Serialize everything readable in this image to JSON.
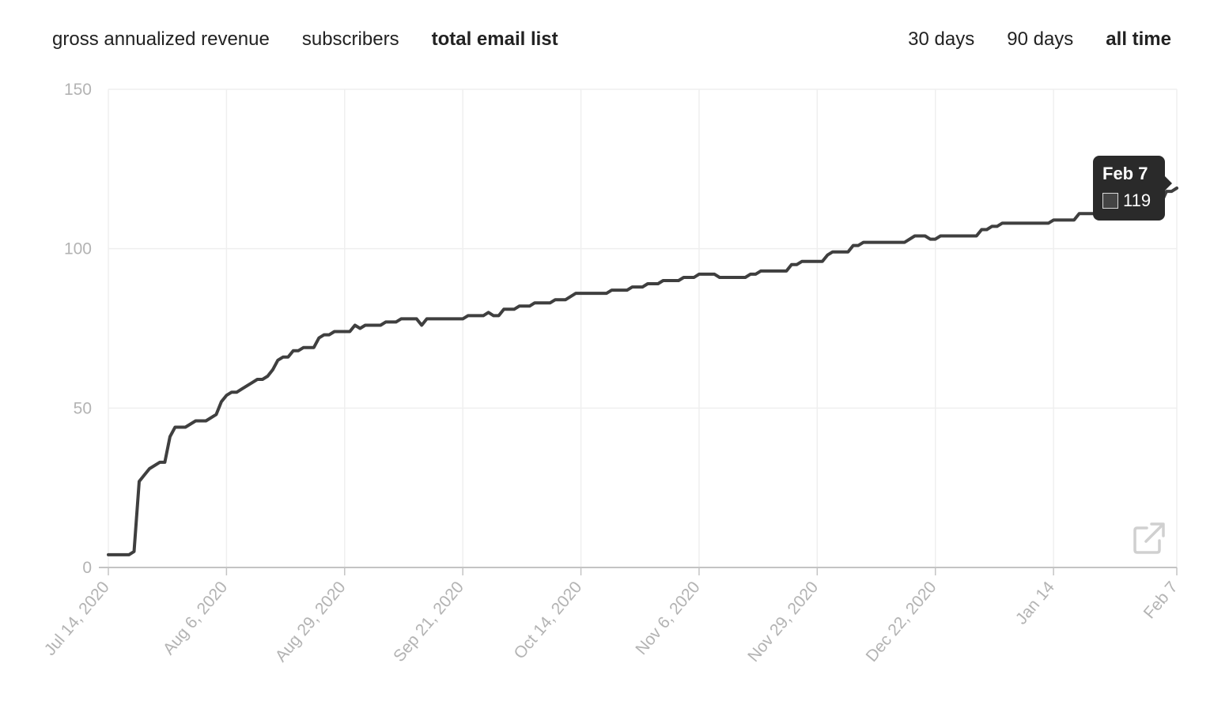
{
  "tabs": [
    {
      "label": "gross annualized revenue",
      "active": false
    },
    {
      "label": "subscribers",
      "active": false
    },
    {
      "label": "total email list",
      "active": true
    }
  ],
  "ranges": [
    {
      "label": "30 days",
      "active": false
    },
    {
      "label": "90 days",
      "active": false
    },
    {
      "label": "all time",
      "active": true
    }
  ],
  "tooltip": {
    "date": "Feb 7",
    "value": "119"
  },
  "icons": {
    "external": "external-link-icon"
  },
  "colors": {
    "line": "#3f3f3f",
    "tooltip_bg": "#2a2a2a",
    "grid": "#efefef",
    "tick_text": "#b3b3b3"
  },
  "chart_data": {
    "type": "line",
    "title": "",
    "xlabel": "",
    "ylabel": "",
    "ylim": [
      0,
      150
    ],
    "yticks": [
      0,
      50,
      100,
      150
    ],
    "grid": true,
    "legend": "none",
    "x_range": [
      "2020-07-14",
      "2021-02-07"
    ],
    "x_ticks": [
      {
        "date": "2020-07-14",
        "label": "Jul 14, 2020"
      },
      {
        "date": "2020-08-06",
        "label": "Aug 6, 2020"
      },
      {
        "date": "2020-08-29",
        "label": "Aug 29, 2020"
      },
      {
        "date": "2020-09-21",
        "label": "Sep 21, 2020"
      },
      {
        "date": "2020-10-14",
        "label": "Oct 14, 2020"
      },
      {
        "date": "2020-11-06",
        "label": "Nov 6, 2020"
      },
      {
        "date": "2020-11-29",
        "label": "Nov 29, 2020"
      },
      {
        "date": "2020-12-22",
        "label": "Dec 22, 2020"
      },
      {
        "date": "2021-01-14",
        "label": "Jan 14"
      },
      {
        "date": "2021-02-07",
        "label": "Feb 7"
      }
    ],
    "series": [
      {
        "points": [
          [
            "2020-07-14",
            4
          ],
          [
            "2020-07-18",
            4
          ],
          [
            "2020-07-19",
            5
          ],
          [
            "2020-07-20",
            27
          ],
          [
            "2020-07-21",
            29
          ],
          [
            "2020-07-22",
            31
          ],
          [
            "2020-07-24",
            33
          ],
          [
            "2020-07-25",
            33
          ],
          [
            "2020-07-26",
            41
          ],
          [
            "2020-07-27",
            44
          ],
          [
            "2020-07-29",
            44
          ],
          [
            "2020-07-31",
            46
          ],
          [
            "2020-08-02",
            46
          ],
          [
            "2020-08-04",
            48
          ],
          [
            "2020-08-05",
            52
          ],
          [
            "2020-08-06",
            54
          ],
          [
            "2020-08-07",
            55
          ],
          [
            "2020-08-08",
            55
          ],
          [
            "2020-08-09",
            56
          ],
          [
            "2020-08-11",
            58
          ],
          [
            "2020-08-12",
            59
          ],
          [
            "2020-08-13",
            59
          ],
          [
            "2020-08-14",
            60
          ],
          [
            "2020-08-15",
            62
          ],
          [
            "2020-08-16",
            65
          ],
          [
            "2020-08-17",
            66
          ],
          [
            "2020-08-18",
            66
          ],
          [
            "2020-08-19",
            68
          ],
          [
            "2020-08-20",
            68
          ],
          [
            "2020-08-21",
            69
          ],
          [
            "2020-08-23",
            69
          ],
          [
            "2020-08-24",
            72
          ],
          [
            "2020-08-25",
            73
          ],
          [
            "2020-08-26",
            73
          ],
          [
            "2020-08-27",
            74
          ],
          [
            "2020-08-30",
            74
          ],
          [
            "2020-08-31",
            76
          ],
          [
            "2020-09-01",
            75
          ],
          [
            "2020-09-02",
            76
          ],
          [
            "2020-09-05",
            76
          ],
          [
            "2020-09-06",
            77
          ],
          [
            "2020-09-08",
            77
          ],
          [
            "2020-09-09",
            78
          ],
          [
            "2020-09-12",
            78
          ],
          [
            "2020-09-13",
            76
          ],
          [
            "2020-09-14",
            78
          ],
          [
            "2020-09-21",
            78
          ],
          [
            "2020-09-22",
            79
          ],
          [
            "2020-09-25",
            79
          ],
          [
            "2020-09-26",
            80
          ],
          [
            "2020-09-27",
            79
          ],
          [
            "2020-09-28",
            79
          ],
          [
            "2020-09-29",
            81
          ],
          [
            "2020-10-01",
            81
          ],
          [
            "2020-10-02",
            82
          ],
          [
            "2020-10-04",
            82
          ],
          [
            "2020-10-05",
            83
          ],
          [
            "2020-10-08",
            83
          ],
          [
            "2020-10-09",
            84
          ],
          [
            "2020-10-11",
            84
          ],
          [
            "2020-10-13",
            86
          ],
          [
            "2020-10-19",
            86
          ],
          [
            "2020-10-20",
            87
          ],
          [
            "2020-10-23",
            87
          ],
          [
            "2020-10-24",
            88
          ],
          [
            "2020-10-26",
            88
          ],
          [
            "2020-10-27",
            89
          ],
          [
            "2020-10-29",
            89
          ],
          [
            "2020-10-30",
            90
          ],
          [
            "2020-11-02",
            90
          ],
          [
            "2020-11-03",
            91
          ],
          [
            "2020-11-05",
            91
          ],
          [
            "2020-11-06",
            92
          ],
          [
            "2020-11-09",
            92
          ],
          [
            "2020-11-10",
            91
          ],
          [
            "2020-11-15",
            91
          ],
          [
            "2020-11-16",
            92
          ],
          [
            "2020-11-17",
            92
          ],
          [
            "2020-11-18",
            93
          ],
          [
            "2020-11-23",
            93
          ],
          [
            "2020-11-24",
            95
          ],
          [
            "2020-11-25",
            95
          ],
          [
            "2020-11-26",
            96
          ],
          [
            "2020-11-30",
            96
          ],
          [
            "2020-12-01",
            98
          ],
          [
            "2020-12-02",
            99
          ],
          [
            "2020-12-05",
            99
          ],
          [
            "2020-12-06",
            101
          ],
          [
            "2020-12-07",
            101
          ],
          [
            "2020-12-08",
            102
          ],
          [
            "2020-12-16",
            102
          ],
          [
            "2020-12-18",
            104
          ],
          [
            "2020-12-20",
            104
          ],
          [
            "2020-12-21",
            103
          ],
          [
            "2020-12-22",
            103
          ],
          [
            "2020-12-23",
            104
          ],
          [
            "2020-12-30",
            104
          ],
          [
            "2020-12-31",
            106
          ],
          [
            "2021-01-01",
            106
          ],
          [
            "2021-01-02",
            107
          ],
          [
            "2021-01-03",
            107
          ],
          [
            "2021-01-04",
            108
          ],
          [
            "2021-01-13",
            108
          ],
          [
            "2021-01-14",
            109
          ],
          [
            "2021-01-18",
            109
          ],
          [
            "2021-01-19",
            111
          ],
          [
            "2021-02-03",
            111
          ],
          [
            "2021-02-05",
            118
          ],
          [
            "2021-02-06",
            118
          ],
          [
            "2021-02-07",
            119
          ]
        ]
      }
    ]
  }
}
